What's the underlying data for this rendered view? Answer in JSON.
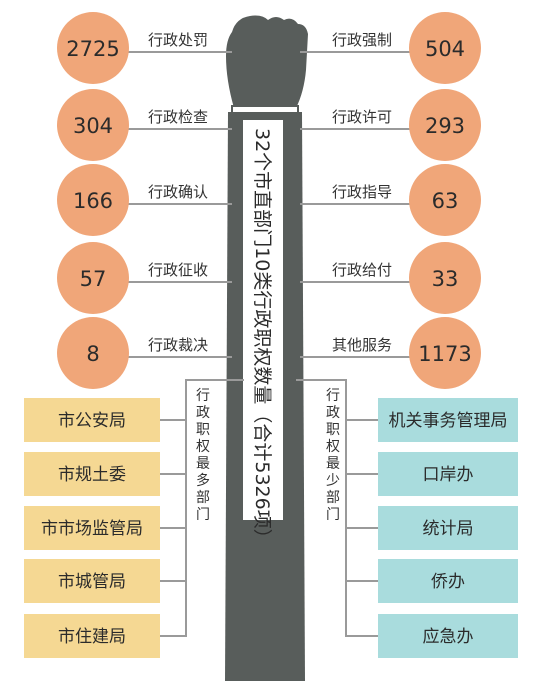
{
  "title": "32个市直部门10类行政职权数量（合计5326项）",
  "colors": {
    "circle": "#f0a679",
    "arm": "#585d5b",
    "left_box": "#f5d893",
    "right_box": "#a9dcdd",
    "line": "#9a9a9a"
  },
  "left_categories": [
    {
      "label": "行政处罚",
      "value": "2725"
    },
    {
      "label": "行政检查",
      "value": "304"
    },
    {
      "label": "行政确认",
      "value": "166"
    },
    {
      "label": "行政征收",
      "value": "57"
    },
    {
      "label": "行政裁决",
      "value": "8"
    }
  ],
  "right_categories": [
    {
      "label": "行政强制",
      "value": "504"
    },
    {
      "label": "行政许可",
      "value": "293"
    },
    {
      "label": "行政指导",
      "value": "63"
    },
    {
      "label": "行政给付",
      "value": "33"
    },
    {
      "label": "其他服务",
      "value": "1173"
    }
  ],
  "most_heading": "行政职权最多部门",
  "least_heading": "行政职权最少部门",
  "most_departments": [
    "市公安局",
    "市规土委",
    "市市场监管局",
    "市城管局",
    "市住建局"
  ],
  "least_departments": [
    "机关事务管理局",
    "口岸办",
    "统计局",
    "侨办",
    "应急办"
  ]
}
